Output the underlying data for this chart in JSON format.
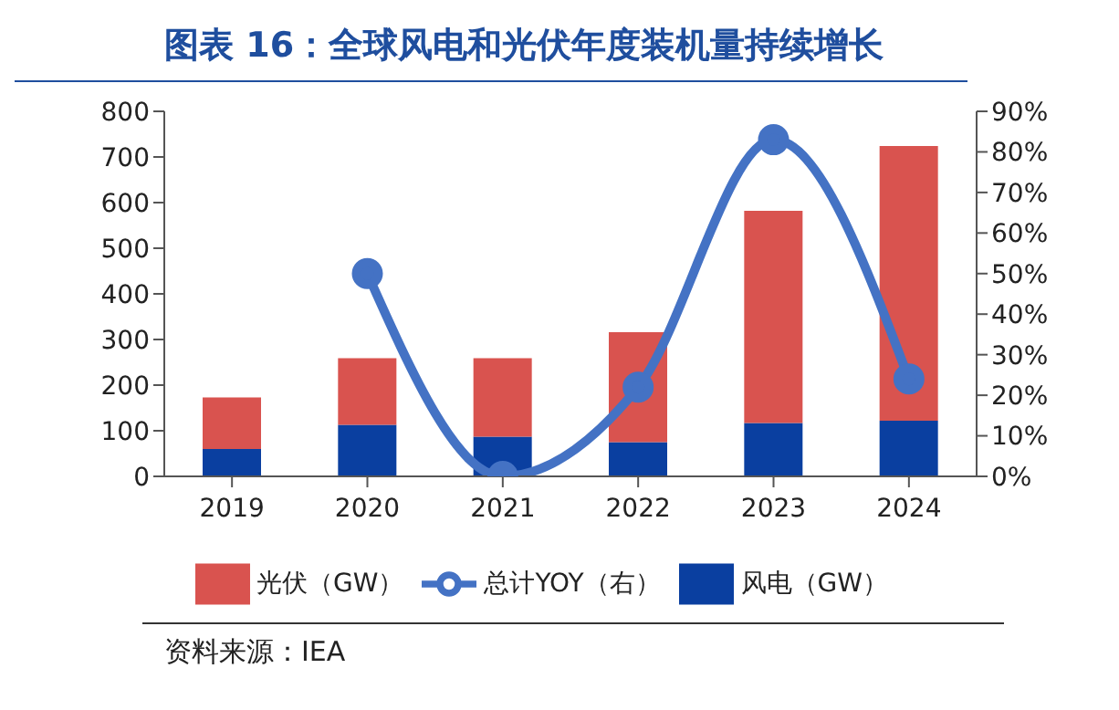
{
  "chart_data": {
    "type": "bar",
    "title": "图表 16：全球风电和光伏年度装机量持续增长",
    "annotations": [
      "资料来源：IEA"
    ],
    "categories": [
      "2019",
      "2020",
      "2021",
      "2022",
      "2023",
      "2024"
    ],
    "stacked": true,
    "series": [
      {
        "name": "风电（GW）",
        "color": "#0a3fa0",
        "values": [
          60,
          113,
          87,
          75,
          117,
          122
        ]
      },
      {
        "name": "光伏（GW）",
        "color": "#d9534f",
        "values": [
          113,
          146,
          172,
          241,
          465,
          602
        ]
      },
      {
        "name": "总计YOY（右）",
        "type": "line",
        "axis": "y2",
        "color": "#4472c4",
        "values": [
          null,
          50,
          0,
          22,
          83,
          24
        ]
      }
    ],
    "ylim": [
      0,
      800
    ],
    "yticks": [
      0,
      100,
      200,
      300,
      400,
      500,
      600,
      700,
      800
    ],
    "y2lim": [
      0,
      90
    ],
    "y2ticks": [
      {
        "value": 0,
        "label": "0%"
      },
      {
        "value": 10,
        "label": "10%"
      },
      {
        "value": 20,
        "label": "20%"
      },
      {
        "value": 30,
        "label": "30%"
      },
      {
        "value": 40,
        "label": "40%"
      },
      {
        "value": 50,
        "label": "50%"
      },
      {
        "value": 60,
        "label": "60%"
      },
      {
        "value": 70,
        "label": "70%"
      },
      {
        "value": 80,
        "label": "80%"
      },
      {
        "value": 90,
        "label": "90%"
      }
    ],
    "grid": false,
    "legend": "bottom",
    "marker": "circle",
    "line_style": "solid"
  }
}
